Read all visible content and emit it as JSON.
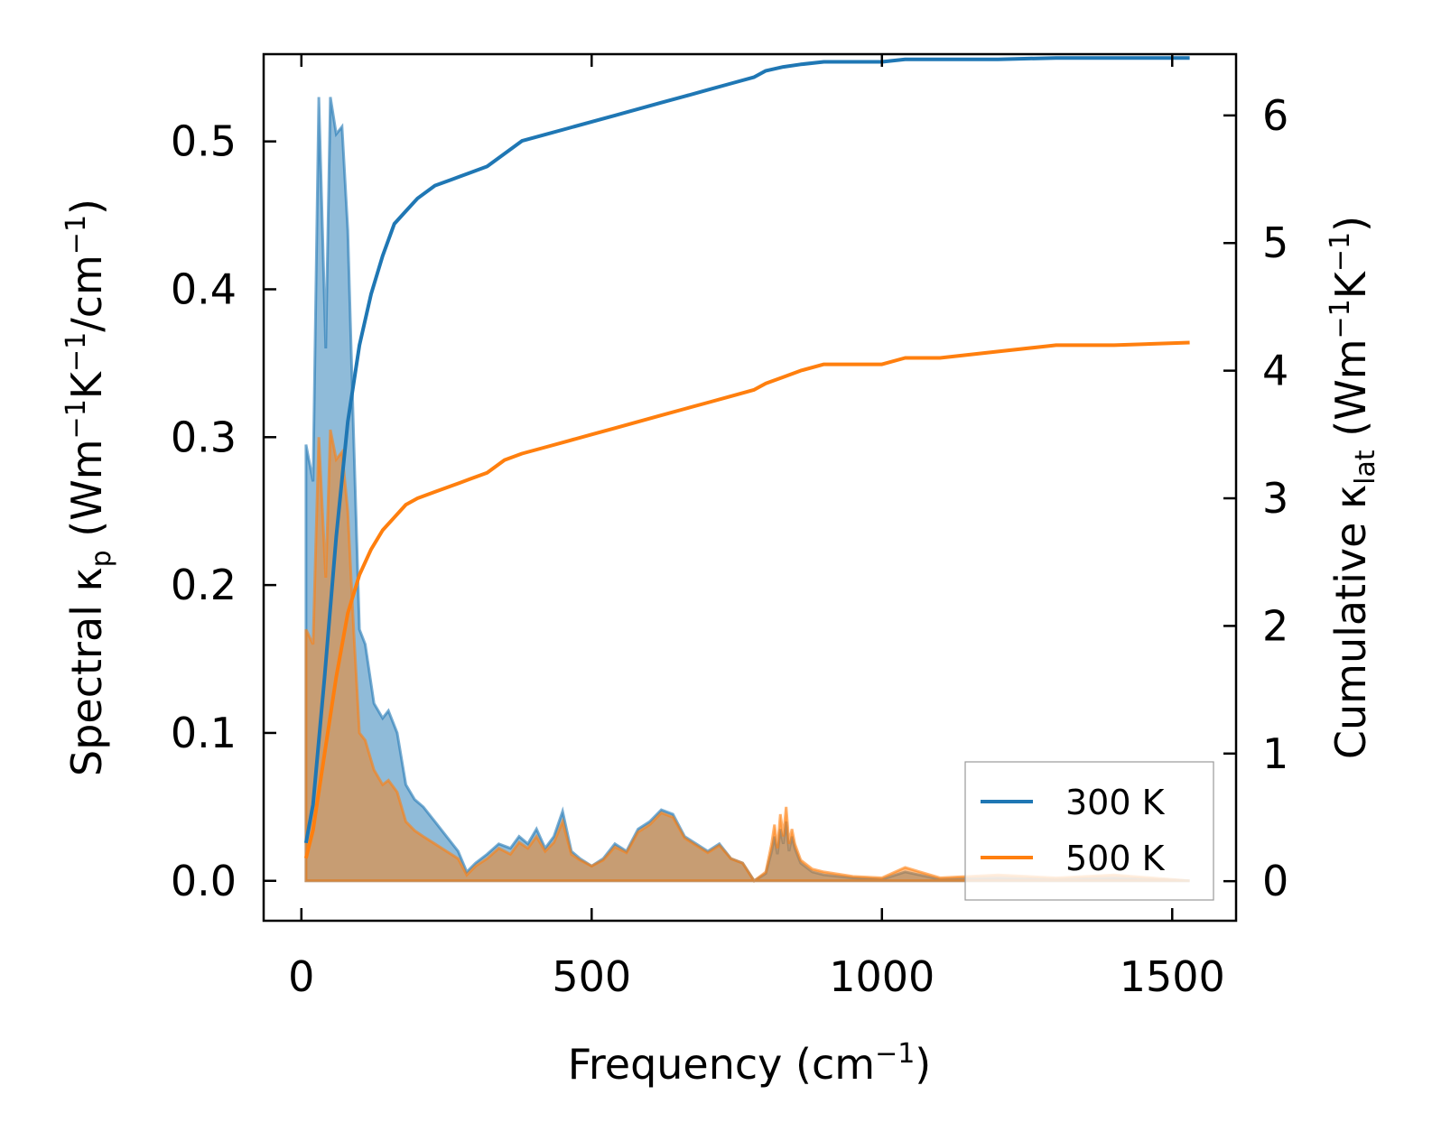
{
  "chart_data": {
    "type": "line",
    "xlabel": {
      "pre": "Frequency (cm",
      "sup": "−1",
      "post": ")"
    },
    "ylabel_left": {
      "pre": "Spectral κ",
      "sub": "p",
      "mid": " (Wm",
      "sup1": "−1",
      "k": "K",
      "sup2": "−1",
      "slash": "/cm",
      "sup3": "−1",
      "post": ")"
    },
    "ylabel_right": {
      "pre": "Cumulative κ",
      "sub": "lat",
      "mid": " (Wm",
      "sup1": "−1",
      "k": "K",
      "sup2": "−1",
      "post": ")"
    },
    "xlim": [
      -65,
      1610
    ],
    "ylim_left": [
      -0.027,
      0.559
    ],
    "ylim_right": [
      -0.31,
      6.48
    ],
    "xticks": [
      0,
      500,
      1000,
      1500
    ],
    "xtick_labels": [
      "0",
      "500",
      "1000",
      "1500"
    ],
    "yticks_left": [
      0.0,
      0.1,
      0.2,
      0.3,
      0.4,
      0.5
    ],
    "ytick_labels_left": [
      "0.0",
      "0.1",
      "0.2",
      "0.3",
      "0.4",
      "0.5"
    ],
    "yticks_right": [
      0,
      1,
      2,
      3,
      4,
      5,
      6
    ],
    "ytick_labels_right": [
      "0",
      "1",
      "2",
      "3",
      "4",
      "5",
      "6"
    ],
    "legend_position": "lower-right",
    "colors": {
      "300K": "#1f77b4",
      "500K": "#ff7f0e"
    },
    "series": [
      {
        "name": "300 K",
        "axis": "left",
        "kind": "spectral-fill",
        "x": [
          8,
          20,
          30,
          42,
          50,
          60,
          70,
          80,
          90,
          100,
          110,
          125,
          140,
          150,
          165,
          180,
          195,
          210,
          230,
          250,
          270,
          285,
          300,
          320,
          340,
          360,
          375,
          390,
          405,
          420,
          435,
          450,
          465,
          480,
          500,
          520,
          540,
          560,
          580,
          600,
          620,
          640,
          660,
          680,
          700,
          720,
          740,
          760,
          780,
          800,
          810,
          815,
          820,
          825,
          830,
          835,
          840,
          845,
          850,
          860,
          880,
          900,
          950,
          1000,
          1040,
          1100,
          1200,
          1300,
          1400,
          1530
        ],
        "y": [
          0.295,
          0.27,
          0.53,
          0.36,
          0.53,
          0.505,
          0.51,
          0.44,
          0.3,
          0.17,
          0.16,
          0.12,
          0.11,
          0.115,
          0.1,
          0.065,
          0.055,
          0.05,
          0.04,
          0.03,
          0.02,
          0.006,
          0.012,
          0.018,
          0.025,
          0.022,
          0.03,
          0.025,
          0.035,
          0.022,
          0.03,
          0.047,
          0.02,
          0.015,
          0.01,
          0.015,
          0.025,
          0.02,
          0.035,
          0.04,
          0.048,
          0.045,
          0.03,
          0.025,
          0.02,
          0.025,
          0.015,
          0.012,
          0.0,
          0.005,
          0.02,
          0.03,
          0.018,
          0.035,
          0.025,
          0.04,
          0.02,
          0.03,
          0.022,
          0.012,
          0.006,
          0.004,
          0.002,
          0.001,
          0.006,
          0.001,
          0.002,
          0.001,
          0.002,
          0.0
        ]
      },
      {
        "name": "500 K",
        "axis": "left",
        "kind": "spectral-fill",
        "x": [
          8,
          20,
          30,
          42,
          50,
          60,
          70,
          80,
          90,
          100,
          110,
          125,
          140,
          150,
          165,
          180,
          195,
          210,
          230,
          250,
          270,
          285,
          300,
          320,
          340,
          360,
          375,
          390,
          405,
          420,
          435,
          450,
          465,
          480,
          500,
          520,
          540,
          560,
          580,
          600,
          620,
          640,
          660,
          680,
          700,
          720,
          740,
          760,
          780,
          800,
          810,
          815,
          820,
          825,
          830,
          835,
          840,
          845,
          850,
          860,
          880,
          900,
          950,
          1000,
          1040,
          1100,
          1200,
          1300,
          1400,
          1530
        ],
        "y": [
          0.17,
          0.16,
          0.3,
          0.205,
          0.305,
          0.285,
          0.29,
          0.25,
          0.17,
          0.1,
          0.095,
          0.075,
          0.065,
          0.068,
          0.06,
          0.04,
          0.034,
          0.03,
          0.025,
          0.02,
          0.015,
          0.004,
          0.01,
          0.015,
          0.022,
          0.018,
          0.026,
          0.022,
          0.03,
          0.02,
          0.026,
          0.04,
          0.018,
          0.014,
          0.01,
          0.014,
          0.023,
          0.019,
          0.033,
          0.038,
          0.046,
          0.043,
          0.029,
          0.024,
          0.019,
          0.024,
          0.015,
          0.012,
          0.0,
          0.006,
          0.025,
          0.038,
          0.022,
          0.045,
          0.03,
          0.05,
          0.025,
          0.035,
          0.025,
          0.014,
          0.008,
          0.006,
          0.003,
          0.002,
          0.009,
          0.002,
          0.004,
          0.002,
          0.004,
          0.0
        ]
      },
      {
        "name": "300 K",
        "axis": "right",
        "kind": "cumulative-line",
        "x": [
          8,
          20,
          40,
          60,
          80,
          100,
          120,
          140,
          160,
          180,
          200,
          230,
          260,
          290,
          320,
          350,
          380,
          420,
          460,
          500,
          540,
          580,
          620,
          660,
          700,
          740,
          780,
          800,
          830,
          860,
          900,
          1000,
          1040,
          1100,
          1200,
          1300,
          1400,
          1530
        ],
        "y": [
          0.3,
          0.6,
          1.6,
          2.7,
          3.6,
          4.2,
          4.6,
          4.9,
          5.15,
          5.25,
          5.35,
          5.45,
          5.5,
          5.55,
          5.6,
          5.7,
          5.8,
          5.85,
          5.9,
          5.95,
          6.0,
          6.05,
          6.1,
          6.15,
          6.2,
          6.25,
          6.3,
          6.35,
          6.38,
          6.4,
          6.42,
          6.42,
          6.44,
          6.44,
          6.44,
          6.45,
          6.45,
          6.45
        ]
      },
      {
        "name": "500 K",
        "axis": "right",
        "kind": "cumulative-line",
        "x": [
          8,
          20,
          40,
          60,
          80,
          100,
          120,
          140,
          160,
          180,
          200,
          230,
          260,
          290,
          320,
          350,
          380,
          420,
          460,
          500,
          540,
          580,
          620,
          660,
          700,
          740,
          780,
          800,
          830,
          860,
          900,
          1000,
          1040,
          1100,
          1200,
          1300,
          1400,
          1530
        ],
        "y": [
          0.18,
          0.4,
          1.0,
          1.6,
          2.1,
          2.4,
          2.6,
          2.75,
          2.85,
          2.95,
          3.0,
          3.05,
          3.1,
          3.15,
          3.2,
          3.3,
          3.35,
          3.4,
          3.45,
          3.5,
          3.55,
          3.6,
          3.65,
          3.7,
          3.75,
          3.8,
          3.85,
          3.9,
          3.95,
          4.0,
          4.05,
          4.05,
          4.1,
          4.1,
          4.15,
          4.2,
          4.2,
          4.22
        ]
      }
    ]
  }
}
